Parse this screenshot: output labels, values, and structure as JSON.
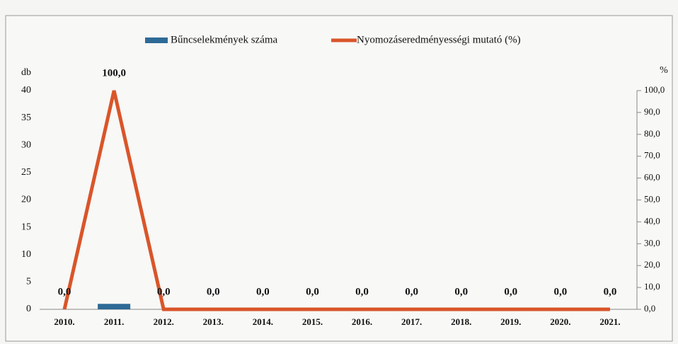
{
  "chart_data": {
    "type": "bar",
    "y_label": "db",
    "y2_label": "%",
    "categories": [
      "2010.",
      "2011.",
      "2012.",
      "2013.",
      "2014.",
      "2015.",
      "2016.",
      "2017.",
      "2018.",
      "2019.",
      "2020.",
      "2021."
    ],
    "series": [
      {
        "name": "Bűncselekmények száma",
        "type": "bar",
        "color": "#2e6a96",
        "values": [
          0,
          1,
          0,
          0,
          0,
          0,
          0,
          0,
          0,
          0,
          0,
          0
        ]
      },
      {
        "name": "Nyomozáseredményességi mutató (%)",
        "type": "line",
        "axis": "y2",
        "color": "#d9552a",
        "values": [
          0,
          100,
          0,
          0,
          0,
          0,
          0,
          0,
          0,
          0,
          0,
          0
        ],
        "value_labels": [
          "0,0",
          "100,0",
          "0,0",
          "0,0",
          "0,0",
          "0,0",
          "0,0",
          "0,0",
          "0,0",
          "0,0",
          "0,0",
          "0,0"
        ]
      }
    ],
    "ylim": [
      0,
      40
    ],
    "yticks": [
      0,
      5,
      10,
      15,
      20,
      25,
      30,
      35,
      40
    ],
    "y2lim": [
      0,
      100
    ],
    "y2ticks": [
      {
        "value": 0,
        "label": "0,0"
      },
      {
        "value": 10,
        "label": "10,0"
      },
      {
        "value": 20,
        "label": "20,0"
      },
      {
        "value": 30,
        "label": "30,0"
      },
      {
        "value": 40,
        "label": "40,0"
      },
      {
        "value": 50,
        "label": "50,0"
      },
      {
        "value": 60,
        "label": "60,0"
      },
      {
        "value": 70,
        "label": "70,0"
      },
      {
        "value": 80,
        "label": "80,0"
      },
      {
        "value": 90,
        "label": "90,0"
      },
      {
        "value": 100,
        "label": "100,0"
      }
    ],
    "legend": "top"
  }
}
